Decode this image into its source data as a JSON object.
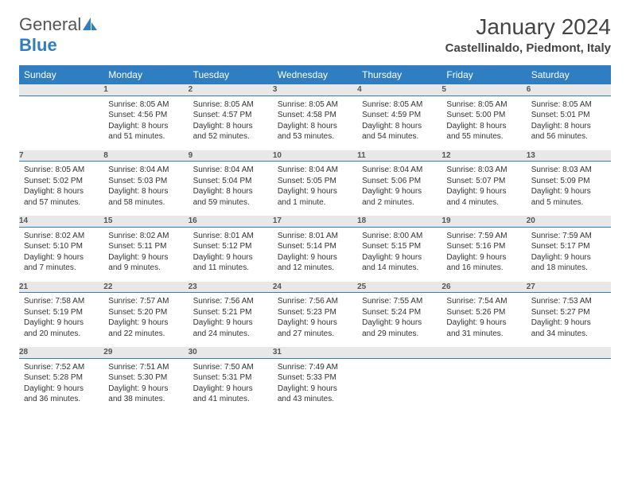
{
  "logo": {
    "text1": "General",
    "text2": "Blue"
  },
  "title": "January 2024",
  "location": "Castellinaldo, Piedmont, Italy",
  "day_headers": [
    "Sunday",
    "Monday",
    "Tuesday",
    "Wednesday",
    "Thursday",
    "Friday",
    "Saturday"
  ],
  "colors": {
    "header_bg": "#2f7ec1",
    "header_fg": "#ffffff",
    "daynum_bg": "#e8e8e8",
    "border": "#2f7ec1"
  },
  "start_weekday": 1,
  "days_in_month": 31,
  "days": {
    "1": {
      "sunrise": "8:05 AM",
      "sunset": "4:56 PM",
      "daylight": "8 hours and 51 minutes."
    },
    "2": {
      "sunrise": "8:05 AM",
      "sunset": "4:57 PM",
      "daylight": "8 hours and 52 minutes."
    },
    "3": {
      "sunrise": "8:05 AM",
      "sunset": "4:58 PM",
      "daylight": "8 hours and 53 minutes."
    },
    "4": {
      "sunrise": "8:05 AM",
      "sunset": "4:59 PM",
      "daylight": "8 hours and 54 minutes."
    },
    "5": {
      "sunrise": "8:05 AM",
      "sunset": "5:00 PM",
      "daylight": "8 hours and 55 minutes."
    },
    "6": {
      "sunrise": "8:05 AM",
      "sunset": "5:01 PM",
      "daylight": "8 hours and 56 minutes."
    },
    "7": {
      "sunrise": "8:05 AM",
      "sunset": "5:02 PM",
      "daylight": "8 hours and 57 minutes."
    },
    "8": {
      "sunrise": "8:04 AM",
      "sunset": "5:03 PM",
      "daylight": "8 hours and 58 minutes."
    },
    "9": {
      "sunrise": "8:04 AM",
      "sunset": "5:04 PM",
      "daylight": "8 hours and 59 minutes."
    },
    "10": {
      "sunrise": "8:04 AM",
      "sunset": "5:05 PM",
      "daylight": "9 hours and 1 minute."
    },
    "11": {
      "sunrise": "8:04 AM",
      "sunset": "5:06 PM",
      "daylight": "9 hours and 2 minutes."
    },
    "12": {
      "sunrise": "8:03 AM",
      "sunset": "5:07 PM",
      "daylight": "9 hours and 4 minutes."
    },
    "13": {
      "sunrise": "8:03 AM",
      "sunset": "5:09 PM",
      "daylight": "9 hours and 5 minutes."
    },
    "14": {
      "sunrise": "8:02 AM",
      "sunset": "5:10 PM",
      "daylight": "9 hours and 7 minutes."
    },
    "15": {
      "sunrise": "8:02 AM",
      "sunset": "5:11 PM",
      "daylight": "9 hours and 9 minutes."
    },
    "16": {
      "sunrise": "8:01 AM",
      "sunset": "5:12 PM",
      "daylight": "9 hours and 11 minutes."
    },
    "17": {
      "sunrise": "8:01 AM",
      "sunset": "5:14 PM",
      "daylight": "9 hours and 12 minutes."
    },
    "18": {
      "sunrise": "8:00 AM",
      "sunset": "5:15 PM",
      "daylight": "9 hours and 14 minutes."
    },
    "19": {
      "sunrise": "7:59 AM",
      "sunset": "5:16 PM",
      "daylight": "9 hours and 16 minutes."
    },
    "20": {
      "sunrise": "7:59 AM",
      "sunset": "5:17 PM",
      "daylight": "9 hours and 18 minutes."
    },
    "21": {
      "sunrise": "7:58 AM",
      "sunset": "5:19 PM",
      "daylight": "9 hours and 20 minutes."
    },
    "22": {
      "sunrise": "7:57 AM",
      "sunset": "5:20 PM",
      "daylight": "9 hours and 22 minutes."
    },
    "23": {
      "sunrise": "7:56 AM",
      "sunset": "5:21 PM",
      "daylight": "9 hours and 24 minutes."
    },
    "24": {
      "sunrise": "7:56 AM",
      "sunset": "5:23 PM",
      "daylight": "9 hours and 27 minutes."
    },
    "25": {
      "sunrise": "7:55 AM",
      "sunset": "5:24 PM",
      "daylight": "9 hours and 29 minutes."
    },
    "26": {
      "sunrise": "7:54 AM",
      "sunset": "5:26 PM",
      "daylight": "9 hours and 31 minutes."
    },
    "27": {
      "sunrise": "7:53 AM",
      "sunset": "5:27 PM",
      "daylight": "9 hours and 34 minutes."
    },
    "28": {
      "sunrise": "7:52 AM",
      "sunset": "5:28 PM",
      "daylight": "9 hours and 36 minutes."
    },
    "29": {
      "sunrise": "7:51 AM",
      "sunset": "5:30 PM",
      "daylight": "9 hours and 38 minutes."
    },
    "30": {
      "sunrise": "7:50 AM",
      "sunset": "5:31 PM",
      "daylight": "9 hours and 41 minutes."
    },
    "31": {
      "sunrise": "7:49 AM",
      "sunset": "5:33 PM",
      "daylight": "9 hours and 43 minutes."
    }
  },
  "labels": {
    "sunrise": "Sunrise:",
    "sunset": "Sunset:",
    "daylight": "Daylight:"
  }
}
